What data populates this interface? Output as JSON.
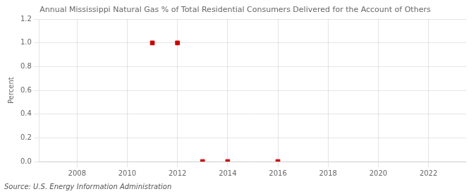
{
  "chart_data": {
    "type": "scatter",
    "title": "Annual Mississippi Natural Gas % of Total Residential Consumers Delivered for the Account of Others",
    "y_label": "Percent",
    "source": "Source: U.S. Energy Information Administration",
    "x": [
      2011,
      2012,
      2013,
      2014,
      2016
    ],
    "values": [
      1.0,
      1.0,
      0.0,
      0.0,
      0.0
    ],
    "color": "#cc0000",
    "marker": "square",
    "xlim": [
      2006.5,
      2023.5
    ],
    "ylim": [
      0.0,
      1.2
    ],
    "xticks": [
      2008,
      2010,
      2012,
      2014,
      2016,
      2018,
      2020,
      2022
    ],
    "yticks": [
      {
        "value": 0.0,
        "label": "0.0"
      },
      {
        "value": 0.2,
        "label": "0.2"
      },
      {
        "value": 0.4,
        "label": "0.4"
      },
      {
        "value": 0.6,
        "label": "0.6"
      },
      {
        "value": 0.8,
        "label": "0.8"
      },
      {
        "value": 1.0,
        "label": "1.0"
      },
      {
        "value": 1.2,
        "label": "1.2"
      }
    ],
    "grid": true
  }
}
